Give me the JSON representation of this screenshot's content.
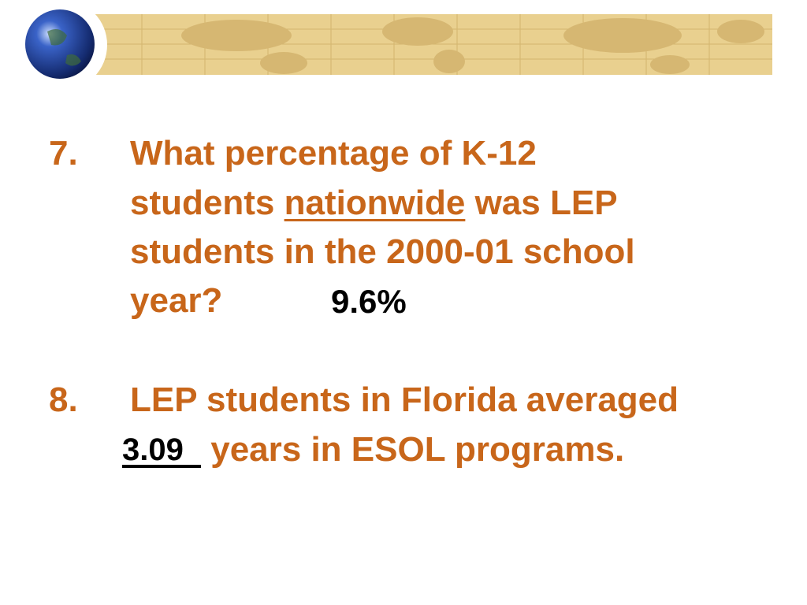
{
  "slide": {
    "questions": [
      {
        "number": "7.",
        "line1": "What percentage of K-12",
        "line2_before": "students ",
        "emphasis": "nationwide",
        "line2_after": " was LEP",
        "line3": "students in the 2000-01 school",
        "line4": "year?",
        "answer": "9.6%"
      },
      {
        "number": "8.",
        "line1": "LEP students in Florida averaged",
        "answer": "3.09",
        "line2": " years in ESOL programs."
      }
    ]
  }
}
